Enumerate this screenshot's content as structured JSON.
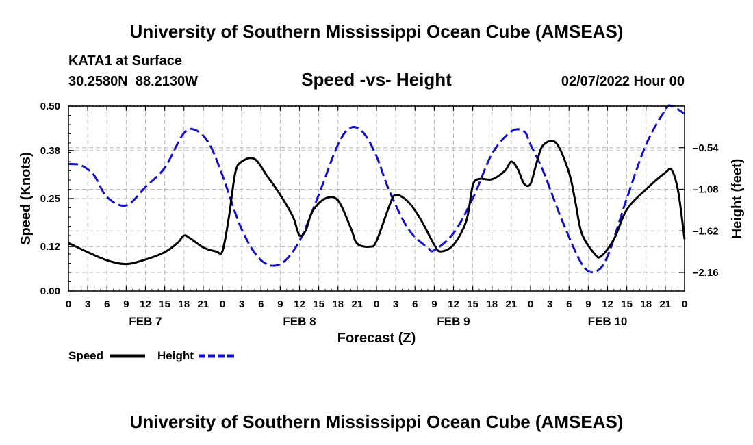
{
  "page": {
    "title_top": "University of Southern Mississippi Ocean Cube (AMSEAS)",
    "title_bottom": "University of Southern Mississippi Ocean Cube (AMSEAS)",
    "station": "KATA1 at Surface",
    "coords": "30.2580N  88.2130W",
    "date": "02/07/2022 Hour 00"
  },
  "chart_data": {
    "type": "line",
    "title": "Speed -vs- Height",
    "xlabel": "Forecast (Z)",
    "ylabel": "Speed (Knots)",
    "y2label": "Height (feet)",
    "x_unit": "hours since 02/07/2022 00Z",
    "xlim": [
      0,
      96
    ],
    "ylim": [
      0,
      0.5
    ],
    "y2lim": [
      -2.4,
      0.0
    ],
    "yticks": [
      0.0,
      0.12,
      0.25,
      0.38,
      0.5
    ],
    "ytick_labels": [
      "0.00",
      "0.12",
      "0.25",
      "0.38",
      "0.50"
    ],
    "y2ticks": [
      -2.16,
      -1.62,
      -1.08,
      -0.54
    ],
    "y2tick_labels": [
      "–2.16",
      "–1.62",
      "–1.08",
      "–0.54"
    ],
    "xticks": [
      0,
      3,
      6,
      9,
      12,
      15,
      18,
      21,
      24,
      27,
      30,
      33,
      36,
      39,
      42,
      45,
      48,
      51,
      54,
      57,
      60,
      63,
      66,
      69,
      72,
      75,
      78,
      81,
      84,
      87,
      90,
      93,
      96
    ],
    "xtick_labels": [
      "0",
      "3",
      "6",
      "9",
      "12",
      "15",
      "18",
      "21",
      "0",
      "3",
      "6",
      "9",
      "12",
      "15",
      "18",
      "21",
      "0",
      "3",
      "6",
      "9",
      "12",
      "15",
      "18",
      "21",
      "0",
      "3",
      "6",
      "9",
      "12",
      "15",
      "18",
      "21",
      "0"
    ],
    "day_labels": [
      {
        "x": 12,
        "label": "FEB 7"
      },
      {
        "x": 36,
        "label": "FEB 8"
      },
      {
        "x": 60,
        "label": "FEB 9"
      },
      {
        "x": 84,
        "label": "FEB 10"
      }
    ],
    "grid": true,
    "legend_position": "bottom-left",
    "series": [
      {
        "name": "Speed",
        "axis": "left",
        "color": "#000000",
        "dash": "solid",
        "points": [
          [
            0,
            0.13
          ],
          [
            3,
            0.105
          ],
          [
            6,
            0.083
          ],
          [
            9,
            0.073
          ],
          [
            12,
            0.085
          ],
          [
            15,
            0.105
          ],
          [
            17,
            0.13
          ],
          [
            18,
            0.15
          ],
          [
            19,
            0.142
          ],
          [
            21,
            0.118
          ],
          [
            23,
            0.107
          ],
          [
            24,
            0.108
          ],
          [
            25,
            0.2
          ],
          [
            26,
            0.32
          ],
          [
            27,
            0.35
          ],
          [
            29,
            0.357
          ],
          [
            31,
            0.31
          ],
          [
            33,
            0.26
          ],
          [
            35,
            0.2
          ],
          [
            36,
            0.15
          ],
          [
            37,
            0.165
          ],
          [
            38,
            0.215
          ],
          [
            40,
            0.25
          ],
          [
            42,
            0.245
          ],
          [
            44,
            0.17
          ],
          [
            45,
            0.128
          ],
          [
            47,
            0.12
          ],
          [
            48,
            0.135
          ],
          [
            50,
            0.23
          ],
          [
            51,
            0.26
          ],
          [
            53,
            0.24
          ],
          [
            55,
            0.19
          ],
          [
            57,
            0.125
          ],
          [
            58,
            0.107
          ],
          [
            60,
            0.125
          ],
          [
            62,
            0.19
          ],
          [
            63,
            0.285
          ],
          [
            64,
            0.303
          ],
          [
            66,
            0.302
          ],
          [
            68,
            0.325
          ],
          [
            69,
            0.35
          ],
          [
            70,
            0.33
          ],
          [
            71,
            0.29
          ],
          [
            72,
            0.29
          ],
          [
            73,
            0.35
          ],
          [
            74,
            0.395
          ],
          [
            76,
            0.4
          ],
          [
            78,
            0.32
          ],
          [
            79,
            0.24
          ],
          [
            80,
            0.155
          ],
          [
            82,
            0.1
          ],
          [
            83,
            0.094
          ],
          [
            85,
            0.14
          ],
          [
            87,
            0.22
          ],
          [
            90,
            0.275
          ],
          [
            93,
            0.32
          ],
          [
            94,
            0.327
          ],
          [
            95,
            0.27
          ],
          [
            96,
            0.14
          ]
        ]
      },
      {
        "name": "Height",
        "axis": "right",
        "color": "#1010c8",
        "dash": "dashed",
        "points": [
          [
            0,
            -0.75
          ],
          [
            2,
            -0.77
          ],
          [
            4,
            -0.9
          ],
          [
            6,
            -1.18
          ],
          [
            9,
            -1.29
          ],
          [
            12,
            -1.05
          ],
          [
            15,
            -0.8
          ],
          [
            18,
            -0.35
          ],
          [
            20,
            -0.32
          ],
          [
            22,
            -0.5
          ],
          [
            24,
            -0.9
          ],
          [
            27,
            -1.6
          ],
          [
            30,
            -2.0
          ],
          [
            33,
            -2.05
          ],
          [
            36,
            -1.75
          ],
          [
            39,
            -1.15
          ],
          [
            42,
            -0.5
          ],
          [
            44,
            -0.28
          ],
          [
            46,
            -0.35
          ],
          [
            48,
            -0.65
          ],
          [
            50,
            -1.1
          ],
          [
            53,
            -1.6
          ],
          [
            56,
            -1.84
          ],
          [
            57,
            -1.87
          ],
          [
            60,
            -1.65
          ],
          [
            63,
            -1.2
          ],
          [
            66,
            -0.62
          ],
          [
            69,
            -0.33
          ],
          [
            71,
            -0.33
          ],
          [
            72,
            -0.5
          ],
          [
            74,
            -0.85
          ],
          [
            77,
            -1.5
          ],
          [
            80,
            -2.05
          ],
          [
            82,
            -2.15
          ],
          [
            84,
            -1.95
          ],
          [
            87,
            -1.2
          ],
          [
            90,
            -0.5
          ],
          [
            93,
            -0.05
          ],
          [
            94,
            0.0
          ],
          [
            96,
            -0.1
          ]
        ]
      }
    ]
  }
}
